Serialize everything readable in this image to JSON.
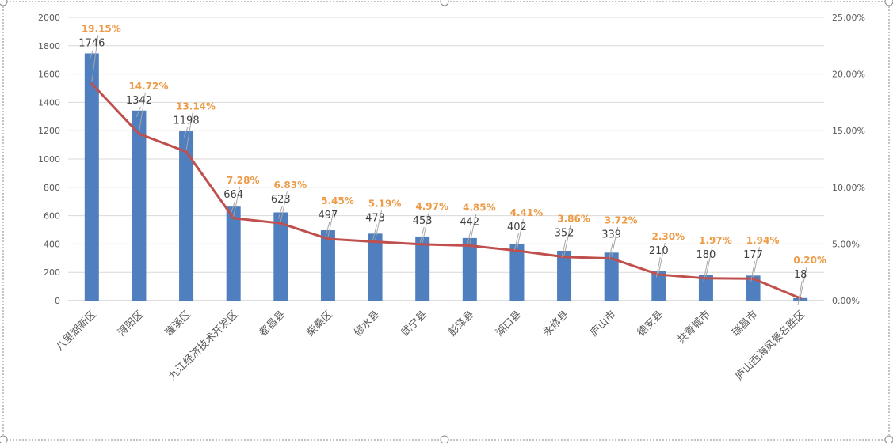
{
  "chart_data": {
    "type": "bar",
    "title": "",
    "xlabel": "",
    "ylabel": "",
    "ylim": [
      0,
      2000
    ],
    "y2lim": [
      0,
      25
    ],
    "yticks": [
      "0",
      "200",
      "400",
      "600",
      "800",
      "1000",
      "1200",
      "1400",
      "1600",
      "1800",
      "2000"
    ],
    "y2ticks": [
      "0.00%",
      "5.00%",
      "10.00%",
      "15.00%",
      "20.00%",
      "25.00%"
    ],
    "grid": true,
    "categories": [
      "八里湖新区",
      "浔阳区",
      "濂溪区",
      "九江经济技术开发区",
      "都昌县",
      "柴桑区",
      "修水县",
      "武宁县",
      "彭泽县",
      "湖口县",
      "永修县",
      "庐山市",
      "德安县",
      "共青城市",
      "瑞昌市",
      "庐山西海风景名胜区"
    ],
    "series": [
      {
        "type": "bar",
        "axis": "left",
        "color": "#4f7fbf",
        "values": [
          1746,
          1342,
          1198,
          664,
          623,
          497,
          473,
          453,
          442,
          402,
          352,
          339,
          210,
          180,
          177,
          18
        ],
        "labels": [
          "1746",
          "1342",
          "1198",
          "664",
          "623",
          "497",
          "473",
          "453",
          "442",
          "402",
          "352",
          "339",
          "210",
          "180",
          "177",
          "18"
        ]
      },
      {
        "type": "line",
        "axis": "right",
        "color": "#c0504d",
        "label_color": "#ed9b47",
        "values": [
          19.15,
          14.72,
          13.14,
          7.28,
          6.83,
          5.45,
          5.19,
          4.97,
          4.85,
          4.41,
          3.86,
          3.72,
          2.3,
          1.97,
          1.94,
          0.2
        ],
        "labels": [
          "19.15%",
          "14.72%",
          "13.14%",
          "7.28%",
          "6.83%",
          "5.45%",
          "5.19%",
          "4.97%",
          "4.85%",
          "4.41%",
          "3.86%",
          "3.72%",
          "2.30%",
          "1.97%",
          "1.94%",
          "0.20%"
        ]
      }
    ]
  }
}
